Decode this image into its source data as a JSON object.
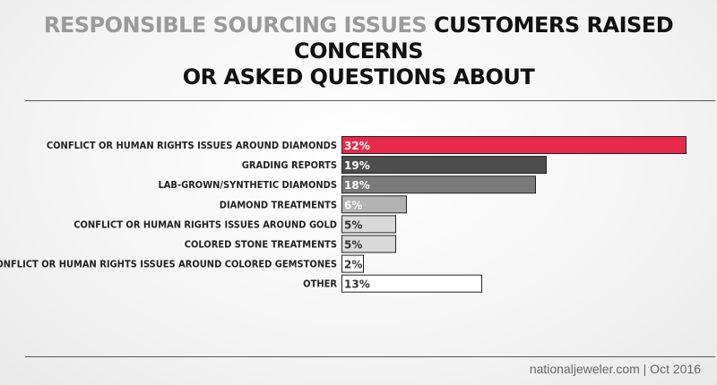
{
  "title": {
    "highlight": "RESPONSIBLE SOURCING ISSUES",
    "rest": " CUSTOMERS RAISED CONCERNS",
    "line2": "OR ASKED QUESTIONS ABOUT"
  },
  "source": "nationaljeweler.com | Oct 2016",
  "colors": {
    "accent": "#e8294a",
    "dark": "#4d4d4d",
    "mid": "#7a7a7a",
    "light": "#b3b3b3",
    "lighter": "#d9d9d9",
    "white": "#ffffff"
  },
  "chart_data": {
    "type": "bar",
    "orientation": "horizontal",
    "categories": [
      "CONFLICT OR HUMAN RIGHTS ISSUES AROUND DIAMONDS",
      "GRADING REPORTS",
      "LAB-GROWN/SYNTHETIC DIAMONDS",
      "DIAMOND TREATMENTS",
      "CONFLICT OR HUMAN RIGHTS ISSUES AROUND GOLD",
      "COLORED STONE TREATMENTS",
      "CONFLICT OR HUMAN RIGHTS ISSUES AROUND COLORED GEMSTONES",
      "OTHER"
    ],
    "values": [
      32,
      19,
      18,
      6,
      5,
      5,
      2,
      13
    ],
    "value_labels": [
      "32%",
      "19%",
      "18%",
      "6%",
      "5%",
      "5%",
      "2%",
      "13%"
    ],
    "bar_colors": [
      "#e8294a",
      "#4d4d4d",
      "#7a7a7a",
      "#b3b3b3",
      "#d9d9d9",
      "#d9d9d9",
      "#ffffff",
      "#ffffff"
    ],
    "label_colors": [
      "#ffffff",
      "#ffffff",
      "#ffffff",
      "#ffffff",
      "#333333",
      "#333333",
      "#333333",
      "#333333"
    ],
    "xlim": [
      0,
      32
    ],
    "grid": false,
    "legend": false
  }
}
